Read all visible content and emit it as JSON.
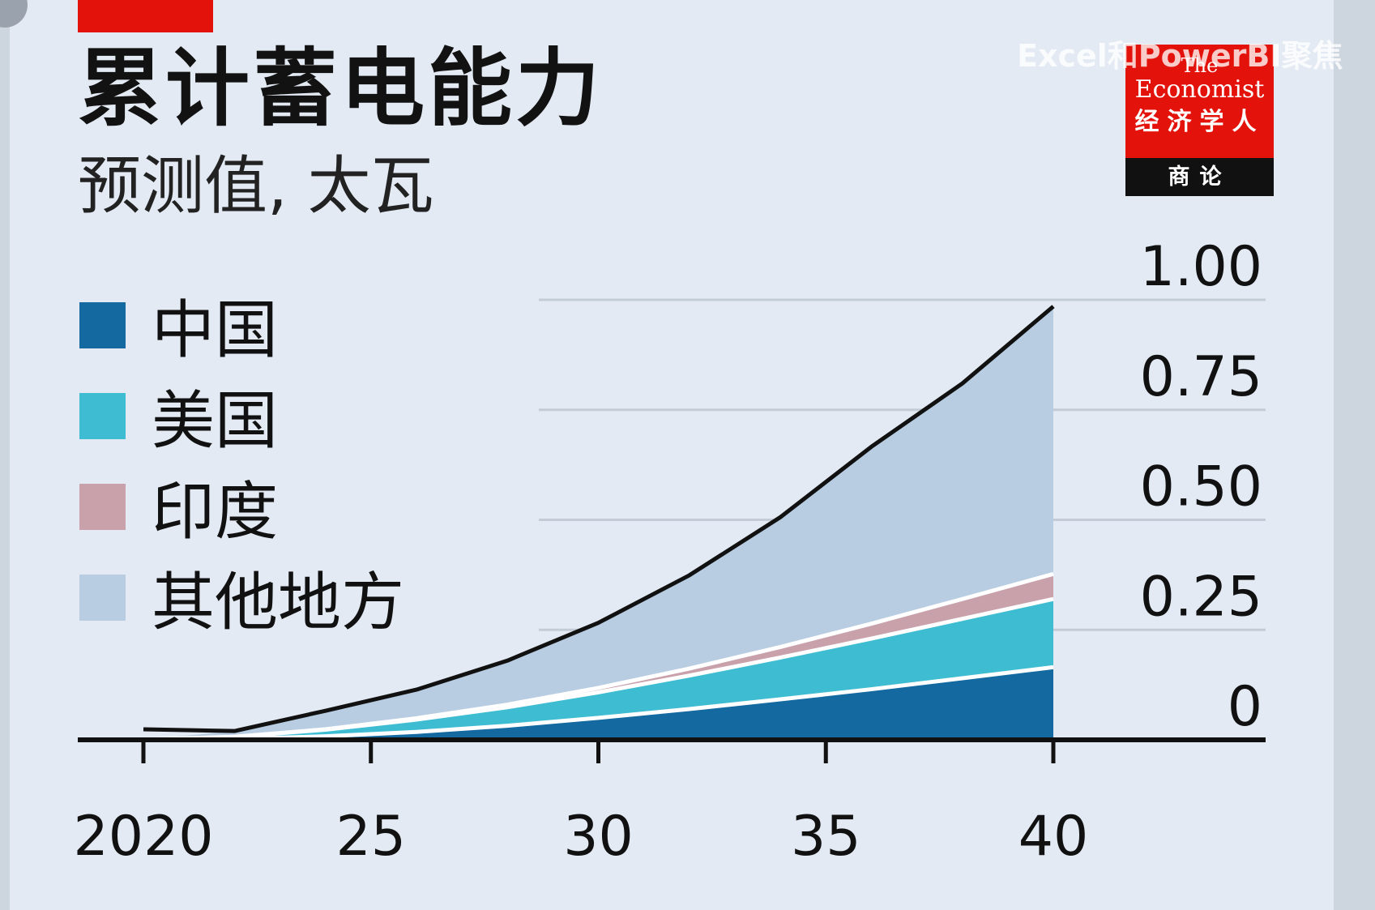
{
  "title": "累计蓄电能力",
  "subtitle": "预测值, 太瓦",
  "watermark": "Excel和PowerBI聚焦",
  "logo": {
    "line1": "The",
    "line2": "Economist",
    "line3": "经济学人",
    "line4": "商论"
  },
  "colors": {
    "china": "#1369a0",
    "us": "#3ebcd2",
    "india": "#c9a1ab",
    "other": "#b8cde2",
    "total_line": "#111111",
    "accent": "#e3120b",
    "grid": "#c3ccd6"
  },
  "chart_data": {
    "type": "area",
    "stacked": true,
    "title": "累计蓄电能力",
    "subtitle": "预测值, 太瓦",
    "xlabel": "",
    "ylabel": "",
    "x": [
      2020,
      2022,
      2024,
      2026,
      2028,
      2030,
      2032,
      2034,
      2036,
      2038,
      2040
    ],
    "x_tick_values": [
      2020,
      2025,
      2030,
      2035,
      2040
    ],
    "x_tick_labels": [
      "2020",
      "25",
      "30",
      "35",
      "40"
    ],
    "y_tick_values": [
      0,
      0.25,
      0.5,
      0.75,
      1.0
    ],
    "y_tick_labels": [
      "0",
      "0.25",
      "0.50",
      "0.75",
      "1.00"
    ],
    "ylim": [
      0,
      1.0
    ],
    "grid": true,
    "y_axis_side": "right",
    "legend_position": "left",
    "series": [
      {
        "name": "中国",
        "color_key": "china",
        "values": [
          0.0,
          0.002,
          0.008,
          0.018,
          0.032,
          0.05,
          0.07,
          0.092,
          0.115,
          0.14,
          0.165
        ]
      },
      {
        "name": "美国",
        "color_key": "us",
        "values": [
          0.0,
          0.005,
          0.015,
          0.028,
          0.042,
          0.058,
          0.076,
          0.095,
          0.115,
          0.135,
          0.155
        ]
      },
      {
        "name": "印度",
        "color_key": "india",
        "values": [
          0.0,
          0.0,
          0.001,
          0.003,
          0.006,
          0.01,
          0.016,
          0.024,
          0.034,
          0.045,
          0.057
        ]
      },
      {
        "name": "其他地方",
        "color_key": "other",
        "values": [
          0.0,
          0.013,
          0.042,
          0.065,
          0.1,
          0.148,
          0.212,
          0.295,
          0.402,
          0.49,
          0.608
        ]
      }
    ]
  }
}
